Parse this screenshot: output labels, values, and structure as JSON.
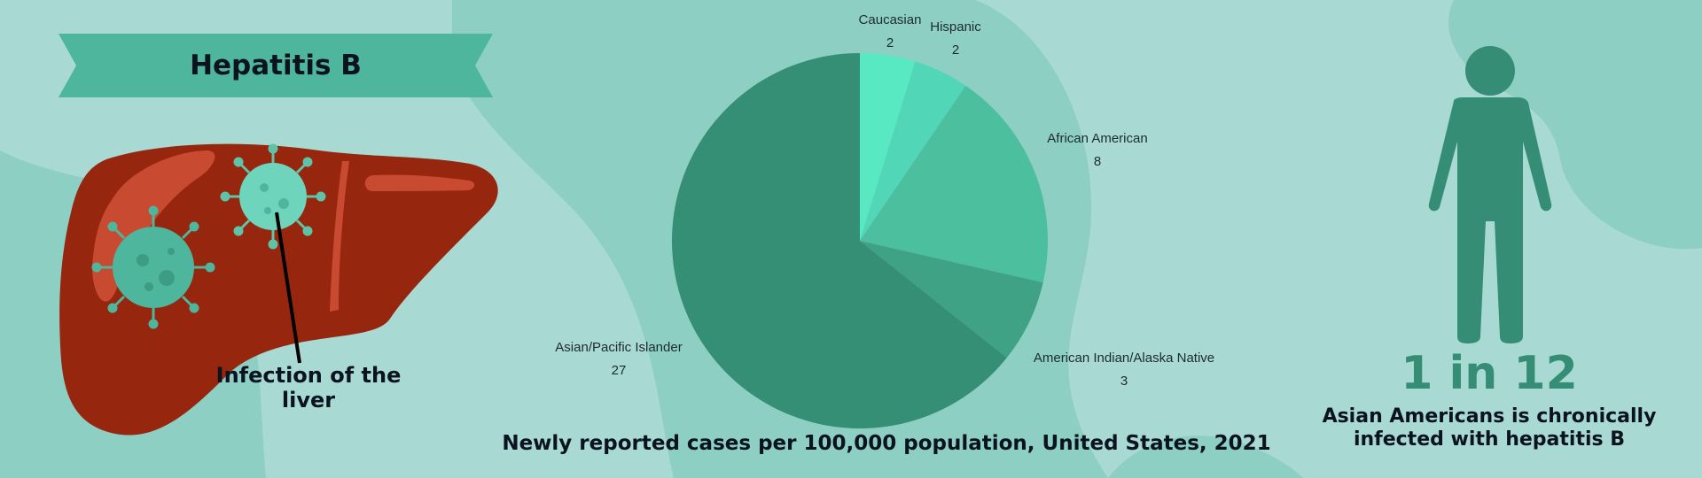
{
  "banner": {
    "title": "Hepatitis B"
  },
  "liver": {
    "caption": "Infection of the liver"
  },
  "stat": {
    "big": "1 in 12",
    "text": "Asian Americans is chronically infected with hepatitis B"
  },
  "colors": {
    "background": "#a8dad3",
    "blob": "#8ecfc4",
    "banner": "#4eb69c",
    "liver": "#96260e",
    "liver_highlight": "#c84a30",
    "virus": "#5ec4a8",
    "person": "#348d74"
  },
  "chart_data": {
    "type": "pie",
    "title": "Newly reported cases per 100,000 population, United States, 2021",
    "categories": [
      "Caucasian",
      "Hispanic",
      "African American",
      "American Indian/Alaska Native",
      "Asian/Pacific Islander"
    ],
    "values": [
      2,
      2,
      8,
      3,
      27
    ],
    "colors": [
      "#58e8c2",
      "#52d6b8",
      "#4bbf9e",
      "#40a285",
      "#348f75"
    ],
    "legend": "none"
  }
}
